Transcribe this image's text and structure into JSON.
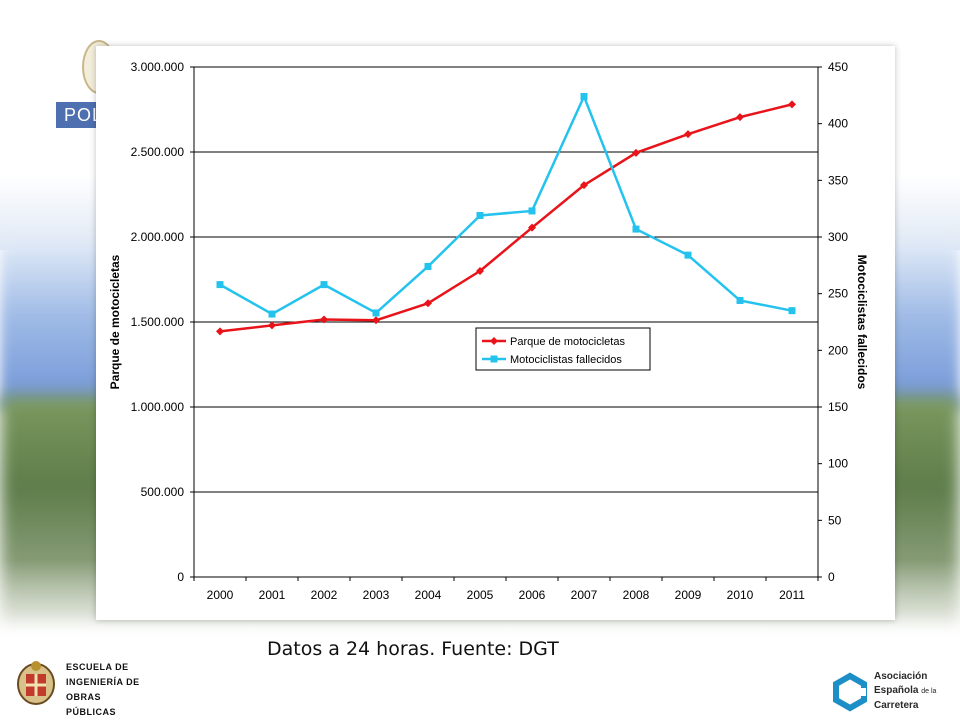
{
  "slide": {
    "banner_text": "POL",
    "caption": "Datos a 24 horas. Fuente: DGT"
  },
  "logos": {
    "escuela": {
      "line1": "Escuela de",
      "line2": "Ingeniería de",
      "line3": "Obras Públicas"
    },
    "aec": {
      "line1": "Asociación",
      "line2": "Española",
      "line2_small": "de la",
      "line3": "Carretera"
    }
  },
  "colors": {
    "series_red": "#e8141a",
    "series_cyan": "#24c3ee",
    "banner": "#4e6fb0",
    "aec_teal": "#1e8fc6"
  },
  "chart_data": {
    "type": "line",
    "categories": [
      "2000",
      "2001",
      "2002",
      "2003",
      "2004",
      "2005",
      "2006",
      "2007",
      "2008",
      "2009",
      "2010",
      "2011"
    ],
    "series": [
      {
        "name": "Parque de motocicletas",
        "axis": "left",
        "color": "#e8141a",
        "marker": "diamond",
        "values": [
          1445000,
          1480000,
          1515000,
          1510000,
          1610000,
          1800000,
          2055000,
          2305000,
          2495000,
          2605000,
          2705000,
          2780000
        ]
      },
      {
        "name": "Motociclistas fallecidos",
        "axis": "right",
        "color": "#24c3ee",
        "marker": "square",
        "values": [
          258,
          232,
          258,
          233,
          274,
          319,
          323,
          424,
          307,
          284,
          244,
          235
        ]
      }
    ],
    "ylabel": "Parque de motocicletas",
    "y2label": "Motociclistas fallecidos",
    "ylim": [
      0,
      3000000
    ],
    "y2lim": [
      0,
      450
    ],
    "yticks": [
      "0",
      "500.000",
      "1.000.000",
      "1.500.000",
      "2.000.000",
      "2.500.000",
      "3.000.000"
    ],
    "y2ticks": [
      "0",
      "50",
      "100",
      "150",
      "200",
      "250",
      "300",
      "350",
      "400",
      "450"
    ],
    "grid": "horizontal",
    "legend_position": "center-right"
  }
}
